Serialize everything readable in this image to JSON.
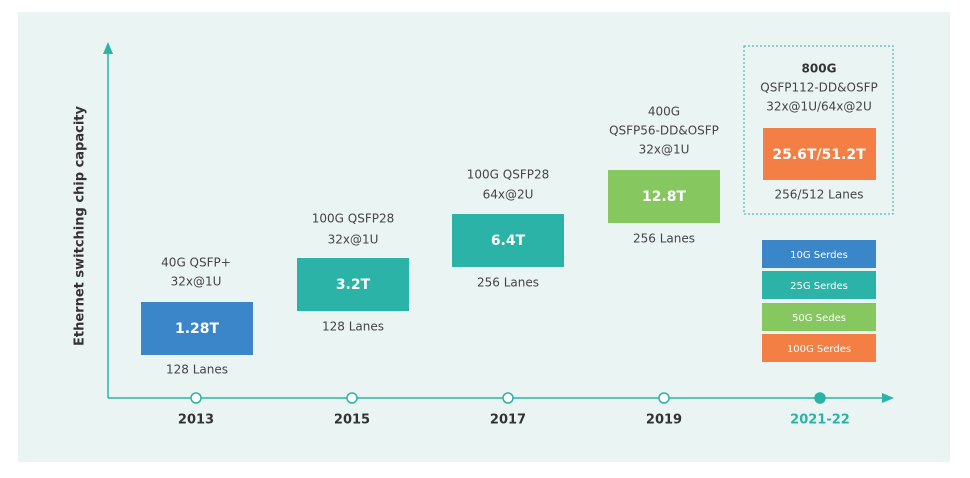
{
  "y_axis_label": "Ethernet switching chip capacity",
  "milestones": [
    {
      "year": "2013",
      "ports": [
        "40G QSFP+",
        "32x@1U"
      ],
      "capacity": "1.28T",
      "lanes": "128 Lanes"
    },
    {
      "year": "2015",
      "ports": [
        "100G QSFP28",
        "32x@1U"
      ],
      "capacity": "3.2T",
      "lanes": "128 Lanes"
    },
    {
      "year": "2017",
      "ports": [
        "100G QSFP28",
        "64x@2U"
      ],
      "capacity": "6.4T",
      "lanes": "256 Lanes"
    },
    {
      "year": "2019",
      "ports": [
        "400G",
        "QSFP56-DD&OSFP",
        "32x@1U"
      ],
      "capacity": "12.8T",
      "lanes": "256 Lanes"
    },
    {
      "year": "2021-22",
      "ports": [
        "800G",
        "QSFP112-DD&OSFP",
        "32x@1U/64x@2U"
      ],
      "capacity": "25.6T/51.2T",
      "lanes": "256/512 Lanes"
    }
  ],
  "legend": [
    "10G Serdes",
    "25G Serdes",
    "50G Sedes",
    "100G Serdes"
  ]
}
